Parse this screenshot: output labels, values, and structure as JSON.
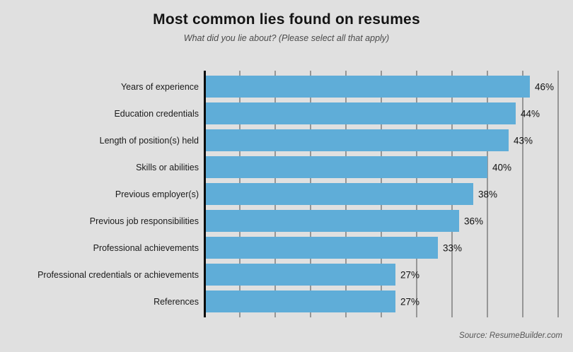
{
  "title": "Most common lies found on resumes",
  "subtitle": "What did you lie about? (Please select all that apply)",
  "source": "Source: ResumeBuilder.com",
  "colors": {
    "background": "#e0e0e0",
    "bar": "#5fadd8",
    "gridline": "#969696",
    "axis": "#0a0a0a"
  },
  "chart_data": {
    "type": "bar",
    "orientation": "horizontal",
    "title": "Most common lies found on resumes",
    "subtitle": "What did you lie about? (Please select all that apply)",
    "categories": [
      "Years of experience",
      "Education credentials",
      "Length of position(s) held",
      "Skills or abilities",
      "Previous employer(s)",
      "Previous job responsibilities",
      "Professional achievements",
      "Professional credentials or achievements",
      "References"
    ],
    "values": [
      46,
      44,
      43,
      40,
      38,
      36,
      33,
      27,
      27
    ],
    "value_labels": [
      "46%",
      "44%",
      "43%",
      "40%",
      "38%",
      "36%",
      "33%",
      "27%",
      "27%"
    ],
    "value_suffix": "%",
    "xlim": [
      0,
      50
    ],
    "gridline_interval": 5,
    "grid": true,
    "legend": false,
    "xlabel": "",
    "ylabel": "",
    "source": "Source: ResumeBuilder.com"
  }
}
